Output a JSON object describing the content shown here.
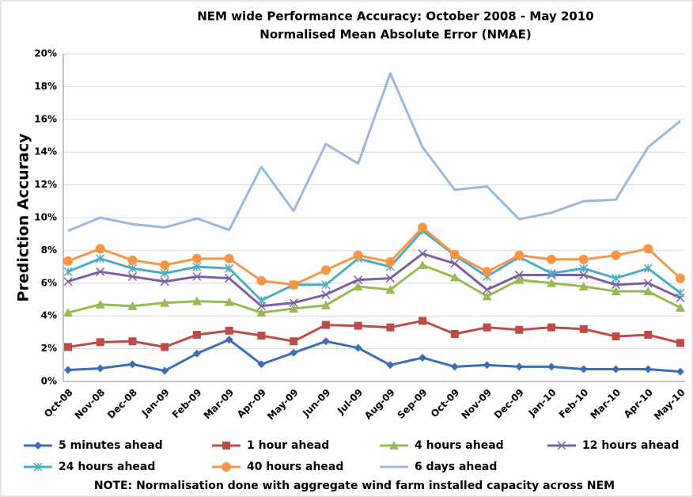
{
  "chart_data": {
    "type": "line",
    "title": "NEM wide Performance Accuracy: October 2008 - May 2010",
    "subtitle": "Normalised Mean Absolute Error (NMAE)",
    "y_label": "Prediction Accuracy",
    "note": "NOTE: Normalisation done with aggregate wind farm installed capacity across NEM",
    "categories": [
      "Oct-08",
      "Nov-08",
      "Dec-08",
      "Jan-09",
      "Feb-09",
      "Mar-09",
      "Apr-09",
      "May-09",
      "Jun-09",
      "Jul-09",
      "Aug-09",
      "Sep-09",
      "Oct-09",
      "Nov-09",
      "Dec-09",
      "Jan-10",
      "Feb-10",
      "Mar-10",
      "Apr-10",
      "May-10"
    ],
    "ylim": [
      0,
      20
    ],
    "yticks": [
      {
        "value": 0,
        "label": "0%"
      },
      {
        "value": 2,
        "label": "2%"
      },
      {
        "value": 4,
        "label": "4%"
      },
      {
        "value": 6,
        "label": "6%"
      },
      {
        "value": 8,
        "label": "8%"
      },
      {
        "value": 10,
        "label": "10%"
      },
      {
        "value": 12,
        "label": "12%"
      },
      {
        "value": 14,
        "label": "14%"
      },
      {
        "value": 16,
        "label": "16%"
      },
      {
        "value": 18,
        "label": "18%"
      },
      {
        "value": 20,
        "label": "20%"
      }
    ],
    "grid": true,
    "series": [
      {
        "name": "5 minutes ahead",
        "color": "#3d6db5",
        "marker": "diamond",
        "values": [
          0.7,
          0.8,
          1.05,
          0.65,
          1.7,
          2.55,
          1.05,
          1.75,
          2.45,
          2.05,
          1.0,
          1.45,
          0.9,
          1.0,
          0.9,
          0.9,
          0.75,
          0.75,
          0.75,
          0.6
        ]
      },
      {
        "name": "1 hour ahead",
        "color": "#be4b48",
        "marker": "square",
        "values": [
          2.1,
          2.4,
          2.45,
          2.1,
          2.85,
          3.1,
          2.8,
          2.45,
          3.45,
          3.4,
          3.3,
          3.7,
          2.9,
          3.3,
          3.15,
          3.3,
          3.2,
          2.75,
          2.85,
          2.35
        ]
      },
      {
        "name": "4 hours ahead",
        "color": "#98b954",
        "marker": "triangle",
        "values": [
          4.2,
          4.7,
          4.6,
          4.8,
          4.9,
          4.85,
          4.2,
          4.45,
          4.65,
          5.8,
          5.6,
          7.1,
          6.35,
          5.2,
          6.2,
          6.0,
          5.8,
          5.5,
          5.5,
          4.5
        ]
      },
      {
        "name": "12 hours ahead",
        "color": "#7d60a0",
        "marker": "x",
        "values": [
          6.1,
          6.7,
          6.4,
          6.1,
          6.4,
          6.3,
          4.6,
          4.8,
          5.3,
          6.2,
          6.3,
          7.8,
          7.2,
          5.6,
          6.5,
          6.5,
          6.5,
          5.9,
          6.0,
          5.1
        ]
      },
      {
        "name": "24 hours ahead",
        "color": "#4bacc6",
        "marker": "star",
        "values": [
          6.7,
          7.5,
          6.9,
          6.6,
          7.0,
          6.9,
          4.95,
          5.9,
          5.9,
          7.5,
          7.0,
          9.2,
          7.7,
          6.4,
          7.6,
          6.6,
          6.9,
          6.3,
          6.9,
          5.4
        ]
      },
      {
        "name": "40 hours ahead",
        "color": "#f79646",
        "marker": "circle",
        "values": [
          7.35,
          8.1,
          7.4,
          7.1,
          7.5,
          7.5,
          6.15,
          5.9,
          6.8,
          7.7,
          7.3,
          9.4,
          7.75,
          6.7,
          7.7,
          7.45,
          7.45,
          7.7,
          8.1,
          6.3
        ]
      },
      {
        "name": "6 days ahead",
        "color": "#9bb7d9",
        "marker": "none",
        "values": [
          9.2,
          10.0,
          9.6,
          9.4,
          9.95,
          9.25,
          13.1,
          10.4,
          14.5,
          13.3,
          18.8,
          14.3,
          11.7,
          11.9,
          9.9,
          10.3,
          11.0,
          11.1,
          14.3,
          15.9
        ]
      }
    ]
  }
}
